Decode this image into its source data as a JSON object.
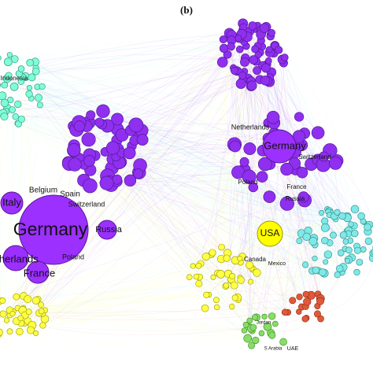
{
  "panel_label": "(b)",
  "left_network": {
    "nodes": [
      {
        "label": "Germany"
      },
      {
        "label": "Italy"
      },
      {
        "label": "Belgium"
      },
      {
        "label": "Spain"
      },
      {
        "label": "Switzerland"
      },
      {
        "label": "Russia"
      },
      {
        "label": "therlands"
      },
      {
        "label": "France"
      },
      {
        "label": "Poland"
      },
      {
        "label": "Indonesia"
      }
    ]
  },
  "right_network": {
    "nodes": [
      {
        "label": "Netherlands"
      },
      {
        "label": "Germany"
      },
      {
        "label": "Switzerland"
      },
      {
        "label": "Poland"
      },
      {
        "label": "France"
      },
      {
        "label": "Russia"
      },
      {
        "label": "USA"
      },
      {
        "label": "Canada"
      },
      {
        "label": "Mexico"
      },
      {
        "label": "Jordan"
      },
      {
        "label": "UAE"
      },
      {
        "label": "S Arabia"
      }
    ]
  }
}
